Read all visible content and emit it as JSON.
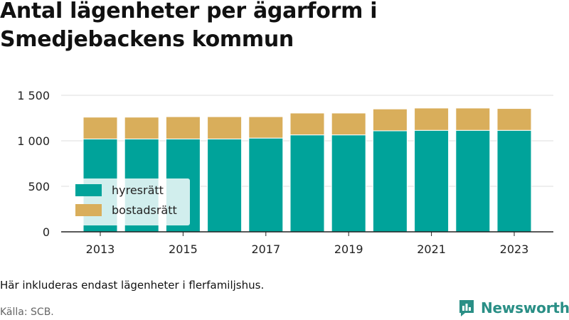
{
  "title": "Antal lägenheter per ägarform i Smedjebackens kommun",
  "note": "Här inkluderas endast lägenheter i flerfamiljshus.",
  "source": "Källa: SCB.",
  "logo": {
    "text": "Newsworthy",
    "icon": "newsworthy-chart-icon"
  },
  "colors": {
    "hyresratt": "#00a39a",
    "bostadsratt": "#d9ae5b",
    "logo": "#2a8f86"
  },
  "chart_data": {
    "type": "bar",
    "stacked": true,
    "categories": [
      "2013",
      "2014",
      "2015",
      "2016",
      "2017",
      "2018",
      "2019",
      "2020",
      "2021",
      "2022",
      "2023"
    ],
    "x_tick_labels": [
      "2013",
      "2015",
      "2017",
      "2019",
      "2021",
      "2023"
    ],
    "series": [
      {
        "name": "hyresrätt",
        "color": "#00a39a",
        "values": [
          1020,
          1020,
          1020,
          1020,
          1030,
          1065,
          1065,
          1110,
          1115,
          1115,
          1115
        ]
      },
      {
        "name": "bostadsrätt",
        "color": "#d9ae5b",
        "values": [
          240,
          240,
          245,
          245,
          235,
          240,
          240,
          240,
          245,
          245,
          240
        ]
      }
    ],
    "ylim": [
      0,
      1500
    ],
    "y_ticks": [
      0,
      500,
      1000,
      1500
    ],
    "y_tick_labels": [
      "0",
      "500",
      "1 000",
      "1 500"
    ],
    "grid": true,
    "legend_position": "bottom-left"
  }
}
